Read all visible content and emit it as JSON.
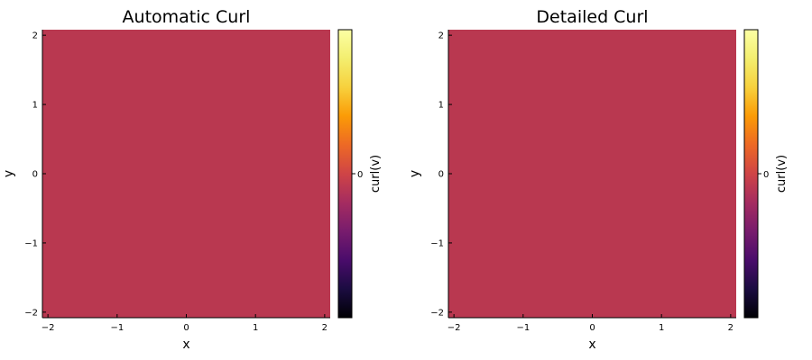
{
  "chart_data": [
    {
      "type": "heatmap",
      "title": "Automatic Curl",
      "xlabel": "x",
      "ylabel": "y",
      "xlim": [
        -2.08,
        2.08
      ],
      "ylim": [
        -2.08,
        2.08
      ],
      "x_ticks": [
        -2,
        -1,
        0,
        1,
        2
      ],
      "y_ticks": [
        -2,
        -1,
        0,
        1,
        2
      ],
      "x_tick_labels": [
        "−2",
        "−1",
        "0",
        "1",
        "2"
      ],
      "y_tick_labels": [
        "−2",
        "−1",
        "0",
        "1",
        "2"
      ],
      "z_value": 0,
      "fill_color": "#b93850",
      "grid": false,
      "colorbar": {
        "label": "curl(v)",
        "colormap": "inferno",
        "ticks": [
          0
        ],
        "tick_labels": [
          "0"
        ]
      }
    },
    {
      "type": "heatmap",
      "title": "Detailed Curl",
      "xlabel": "x",
      "ylabel": "y",
      "xlim": [
        -2.08,
        2.08
      ],
      "ylim": [
        -2.08,
        2.08
      ],
      "x_ticks": [
        -2,
        -1,
        0,
        1,
        2
      ],
      "y_ticks": [
        -2,
        -1,
        0,
        1,
        2
      ],
      "x_tick_labels": [
        "−2",
        "−1",
        "0",
        "1",
        "2"
      ],
      "y_tick_labels": [
        "−2",
        "−1",
        "0",
        "1",
        "2"
      ],
      "z_value": 0,
      "fill_color": "#b93850",
      "grid": false,
      "colorbar": {
        "label": "curl(v)",
        "colormap": "inferno",
        "ticks": [
          0
        ],
        "tick_labels": [
          "0"
        ]
      }
    }
  ]
}
